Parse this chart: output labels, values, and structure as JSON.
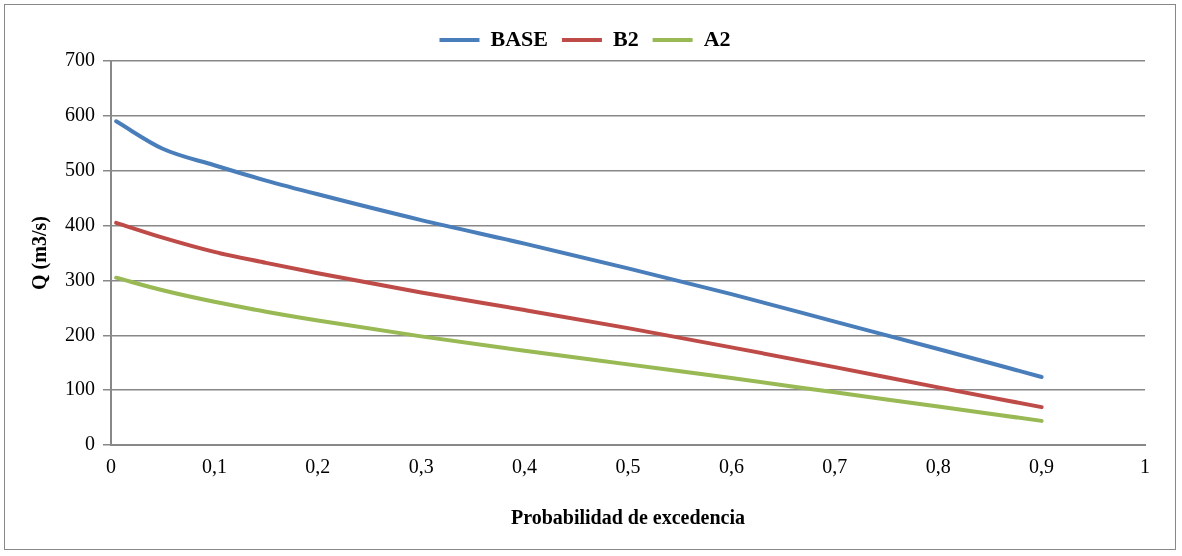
{
  "chart_data": {
    "type": "line",
    "xlabel": "Probabilidad de excedencia",
    "ylabel": "Q (m3/s)",
    "x": [
      0.005,
      0.05,
      0.1,
      0.15,
      0.2,
      0.3,
      0.4,
      0.5,
      0.6,
      0.7,
      0.8,
      0.9
    ],
    "series": [
      {
        "name": "BASE",
        "color": "#4a7ebb",
        "values": [
          590,
          540,
          510,
          482,
          457,
          410,
          367,
          322,
          275,
          225,
          175,
          124
        ]
      },
      {
        "name": "B2",
        "color": "#be4b48",
        "values": [
          405,
          378,
          352,
          332,
          313,
          278,
          246,
          213,
          178,
          142,
          105,
          69
        ]
      },
      {
        "name": "A2",
        "color": "#98b954",
        "values": [
          305,
          282,
          261,
          243,
          227,
          198,
          172,
          147,
          122,
          96,
          70,
          44
        ]
      }
    ],
    "xlim": [
      0,
      1
    ],
    "xticks": [
      {
        "value": 0,
        "label": "0"
      },
      {
        "value": 0.1,
        "label": "0,1"
      },
      {
        "value": 0.2,
        "label": "0,2"
      },
      {
        "value": 0.3,
        "label": "0,3"
      },
      {
        "value": 0.4,
        "label": "0,4"
      },
      {
        "value": 0.5,
        "label": "0,5"
      },
      {
        "value": 0.6,
        "label": "0,6"
      },
      {
        "value": 0.7,
        "label": "0,7"
      },
      {
        "value": 0.8,
        "label": "0,8"
      },
      {
        "value": 0.9,
        "label": "0,9"
      },
      {
        "value": 1,
        "label": "1"
      }
    ],
    "ylim": [
      0,
      700
    ],
    "yticks": [
      0,
      100,
      200,
      300,
      400,
      500,
      600,
      700
    ],
    "grid": "y",
    "legend": "top",
    "marker": "none",
    "line_style": "solid"
  }
}
